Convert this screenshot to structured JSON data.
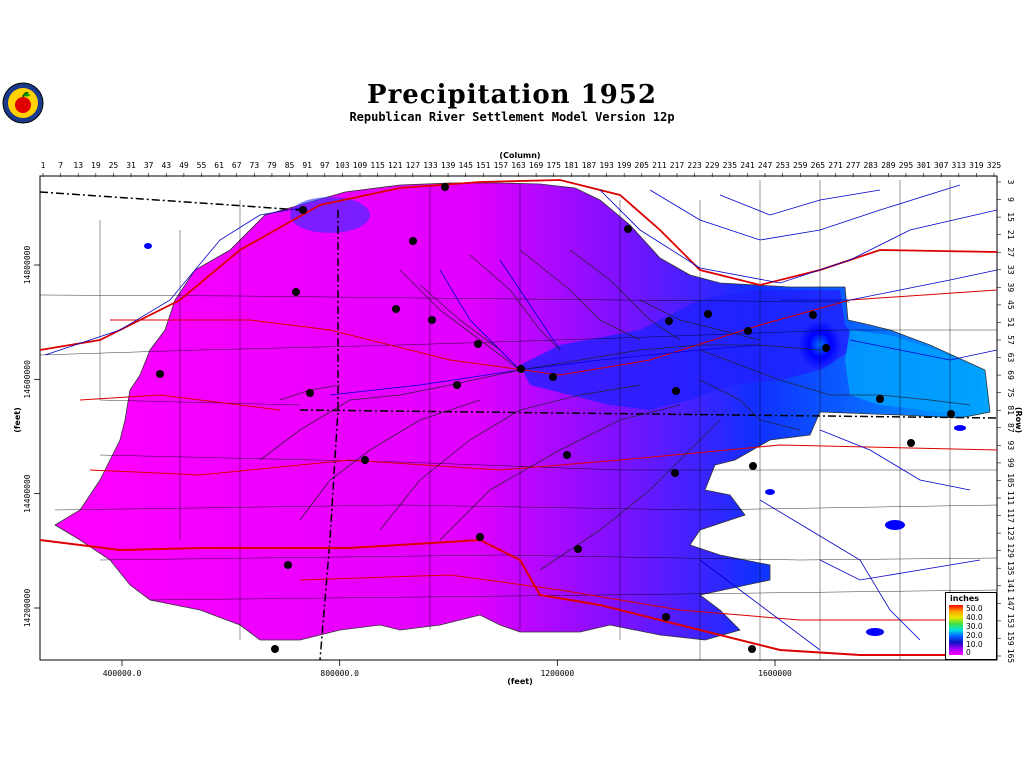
{
  "title": "Precipitation  1952",
  "subtitle": "Republican River Settlement Model Version 12p",
  "logo_icon": "apple-seal-logo",
  "axes": {
    "top_label": "(Column)",
    "bottom_label": "(feet)",
    "left_label": "(feet)",
    "right_label": "(Row)"
  },
  "column_ticks": [
    "1",
    "7",
    "13",
    "19",
    "25",
    "31",
    "37",
    "43",
    "49",
    "55",
    "61",
    "67",
    "73",
    "79",
    "85",
    "91",
    "97",
    "103",
    "109",
    "115",
    "121",
    "127",
    "133",
    "139",
    "145",
    "151",
    "157",
    "163",
    "169",
    "175",
    "181",
    "187",
    "193",
    "199",
    "205",
    "211",
    "217",
    "223",
    "229",
    "235",
    "241",
    "247",
    "253",
    "259",
    "265",
    "271",
    "277",
    "283",
    "289",
    "295",
    "301",
    "307",
    "313",
    "319",
    "325"
  ],
  "row_ticks": [
    "3",
    "9",
    "15",
    "21",
    "27",
    "33",
    "39",
    "45",
    "51",
    "57",
    "63",
    "69",
    "75",
    "81",
    "87",
    "93",
    "99",
    "105",
    "111",
    "117",
    "123",
    "129",
    "135",
    "141",
    "147",
    "153",
    "159",
    "165"
  ],
  "x_ticks": [
    {
      "label": "400000.0",
      "value": 400000
    },
    {
      "label": "800000.0",
      "value": 800000
    },
    {
      "label": "1200000",
      "value": 1200000
    },
    {
      "label": "1600000",
      "value": 1600000
    }
  ],
  "y_ticks": [
    {
      "label": "14800000",
      "value": 14800000
    },
    {
      "label": "14600000",
      "value": 14600000
    },
    {
      "label": "14400000",
      "value": 14400000
    },
    {
      "label": "14200000",
      "value": 14200000
    }
  ],
  "legend": {
    "title": "inches",
    "items": [
      "50.0",
      "40.0",
      "30.0",
      "20.0",
      "10.0",
      "0"
    ]
  },
  "colors": {
    "low_precip": "#ff00ff",
    "mid_precip": "#a000ff",
    "high_precip": "#1010ff",
    "wet_cyan": "#00c8ff",
    "rivers": "#0000cc",
    "roads": "#dd0000",
    "boundaries": "#000000"
  }
}
